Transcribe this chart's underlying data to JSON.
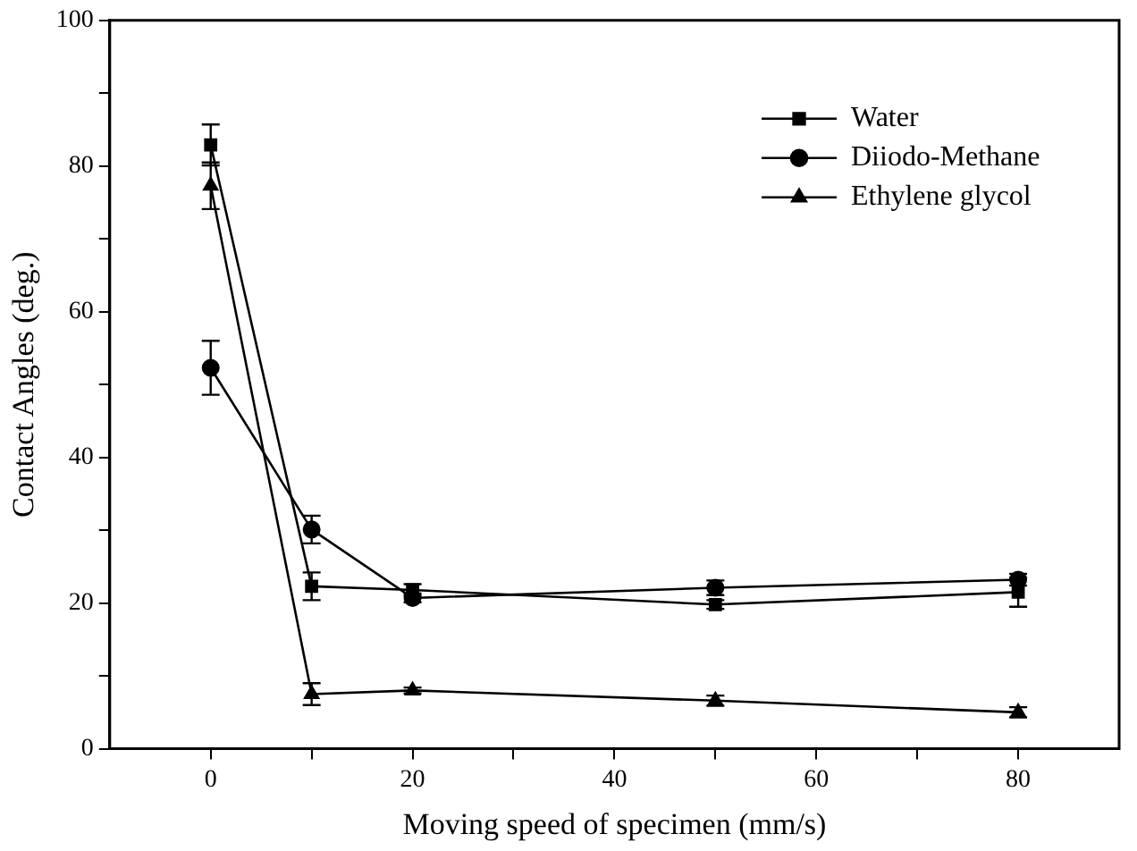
{
  "chart_data": {
    "type": "line",
    "xlabel": "Moving speed of specimen (mm/s)",
    "ylabel": "Contact Angles (deg.)",
    "x": [
      0,
      10,
      20,
      50,
      80
    ],
    "xlim": [
      -10,
      90
    ],
    "xticks": [
      0,
      {
        "value": 10,
        "label": null
      },
      20,
      {
        "value": 30,
        "label": null
      },
      40,
      {
        "value": 50,
        "label": null
      },
      60,
      {
        "value": 70,
        "label": null
      },
      80
    ],
    "ylim": [
      0,
      100
    ],
    "yticks": [
      0,
      {
        "value": 10,
        "label": null
      },
      20,
      {
        "value": 30,
        "label": null
      },
      40,
      {
        "value": 50,
        "label": null
      },
      60,
      {
        "value": 70,
        "label": null
      },
      80,
      {
        "value": 90,
        "label": null
      },
      100
    ],
    "series": [
      {
        "name": "Water",
        "color": "#000000",
        "marker": "square",
        "values": [
          82.9,
          22.3,
          21.8,
          19.8,
          21.5
        ],
        "errors": [
          2.8,
          1.9,
          0.8,
          0.6,
          2
        ]
      },
      {
        "name": "Diiodo-Methane",
        "color": "#000000",
        "marker": "circle",
        "values": [
          52.3,
          30.1,
          20.7,
          22.1,
          23.2
        ],
        "errors": [
          3.7,
          1.9,
          0.6,
          1,
          0.8
        ]
      },
      {
        "name": "Ethylene glycol",
        "color": "#000000",
        "marker": "triangle",
        "values": [
          77.3,
          7.5,
          8.0,
          6.6,
          5.0
        ],
        "errors": [
          3.2,
          1.5,
          0.4,
          0.7,
          0.7
        ]
      }
    ],
    "legend": "top right",
    "grid": false,
    "line_style": "solid"
  }
}
